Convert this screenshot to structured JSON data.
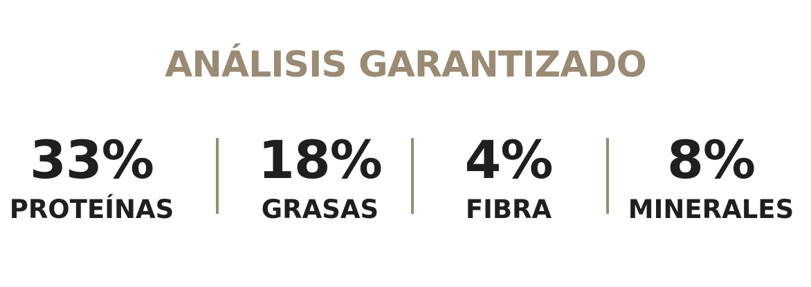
{
  "heading": "ANÁLISIS GARANTIZADO",
  "stats": [
    {
      "value": "33%",
      "label": "PROTEÍNAS"
    },
    {
      "value": "18%",
      "label": "GRASAS"
    },
    {
      "value": "4%",
      "label": "FIBRA"
    },
    {
      "value": "8%",
      "label": "MINERALES"
    }
  ],
  "colors": {
    "accent": "#9a8b75",
    "text": "#1f1f1f",
    "background": "#ffffff"
  }
}
